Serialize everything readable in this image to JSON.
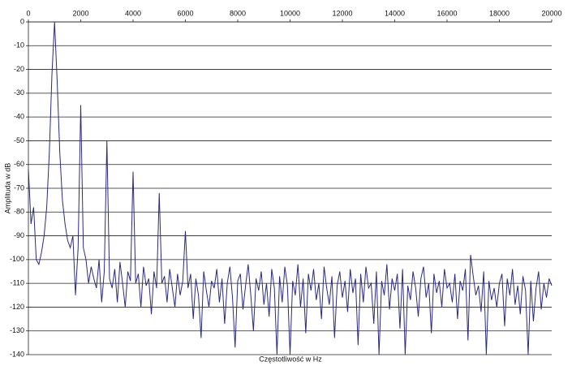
{
  "chart_data": {
    "type": "line",
    "xlabel": "Częstotliwość w Hz",
    "ylabel": "Amplituda w dB",
    "xlim": [
      0,
      20000
    ],
    "ylim": [
      -140,
      0
    ],
    "xticks": [
      0,
      2000,
      4000,
      6000,
      8000,
      10000,
      12000,
      14000,
      16000,
      18000,
      20000
    ],
    "yticks": [
      0,
      -10,
      -20,
      -30,
      -40,
      -50,
      -60,
      -70,
      -80,
      -90,
      -100,
      -110,
      -120,
      -130,
      -140
    ],
    "grid": true,
    "x": [
      0,
      100,
      200,
      300,
      400,
      500,
      600,
      700,
      800,
      900,
      1000,
      1100,
      1200,
      1300,
      1400,
      1500,
      1600,
      1700,
      1800,
      1900,
      2000,
      2100,
      2200,
      2300,
      2400,
      2500,
      2600,
      2700,
      2800,
      2900,
      3000,
      3100,
      3200,
      3300,
      3400,
      3500,
      3600,
      3700,
      3800,
      3900,
      4000,
      4100,
      4200,
      4300,
      4400,
      4500,
      4600,
      4700,
      4800,
      4900,
      5000,
      5100,
      5200,
      5300,
      5400,
      5500,
      5600,
      5700,
      5800,
      5900,
      6000,
      6100,
      6200,
      6300,
      6400,
      6500,
      6600,
      6700,
      6800,
      6900,
      7000,
      7100,
      7200,
      7300,
      7400,
      7500,
      7600,
      7700,
      7800,
      7900,
      8000,
      8100,
      8200,
      8300,
      8400,
      8500,
      8600,
      8700,
      8800,
      8900,
      9000,
      9100,
      9200,
      9300,
      9400,
      9500,
      9600,
      9700,
      9800,
      9900,
      10000,
      10100,
      10200,
      10300,
      10400,
      10500,
      10600,
      10700,
      10800,
      10900,
      11000,
      11100,
      11200,
      11300,
      11400,
      11500,
      11600,
      11700,
      11800,
      11900,
      12000,
      12100,
      12200,
      12300,
      12400,
      12500,
      12600,
      12700,
      12800,
      12900,
      13000,
      13100,
      13200,
      13300,
      13400,
      13500,
      13600,
      13700,
      13800,
      13900,
      14000,
      14100,
      14200,
      14300,
      14400,
      14500,
      14600,
      14700,
      14800,
      14900,
      15000,
      15100,
      15200,
      15300,
      15400,
      15500,
      15600,
      15700,
      15800,
      15900,
      16000,
      16100,
      16200,
      16300,
      16400,
      16500,
      16600,
      16700,
      16800,
      16900,
      17000,
      17100,
      17200,
      17300,
      17400,
      17500,
      17600,
      17700,
      17800,
      17900,
      18000,
      18100,
      18200,
      18300,
      18400,
      18500,
      18600,
      18700,
      18800,
      18900,
      19000,
      19100,
      19200,
      19300,
      19400,
      19500,
      19600,
      19700,
      19800,
      19900,
      20000
    ],
    "series": [
      {
        "color": "#2b2b7e",
        "values": [
          -62,
          -85,
          -78,
          -100,
          -102,
          -97,
          -90,
          -78,
          -55,
          -22,
          0,
          -25,
          -55,
          -75,
          -85,
          -92,
          -95,
          -90,
          -115,
          -95,
          -35,
          -95,
          -100,
          -110,
          -103,
          -108,
          -112,
          -100,
          -118,
          -105,
          -50,
          -108,
          -112,
          -104,
          -118,
          -101,
          -110,
          -120,
          -105,
          -109,
          -63,
          -110,
          -106,
          -120,
          -103,
          -111,
          -108,
          -123,
          -105,
          -112,
          -72,
          -110,
          -107,
          -118,
          -104,
          -112,
          -120,
          -106,
          -115,
          -109,
          -88,
          -112,
          -106,
          -125,
          -108,
          -115,
          -133,
          -105,
          -113,
          -120,
          -109,
          -112,
          -104,
          -118,
          -108,
          -127,
          -110,
          -103,
          -116,
          -137,
          -109,
          -106,
          -121,
          -111,
          -102,
          -115,
          -130,
          -108,
          -113,
          -105,
          -119,
          -110,
          -124,
          -104,
          -112,
          -140,
          -107,
          -118,
          -103,
          -111,
          -140,
          -109,
          -115,
          -102,
          -120,
          -108,
          -131,
          -106,
          -113,
          -104,
          -117,
          -110,
          -125,
          -103,
          -112,
          -119,
          -107,
          -133,
          -111,
          -105,
          -116,
          -109,
          -122,
          -104,
          -114,
          -108,
          -136,
          -106,
          -118,
          -103,
          -112,
          -110,
          -127,
          -105,
          -140,
          -109,
          -115,
          -102,
          -121,
          -108,
          -113,
          -106,
          -129,
          -104,
          -140,
          -111,
          -117,
          -105,
          -112,
          -124,
          -108,
          -103,
          -116,
          -110,
          -131,
          -106,
          -114,
          -109,
          -120,
          -104,
          -112,
          -110,
          -118,
          -106,
          -125,
          -109,
          -113,
          -104,
          -134,
          -98,
          -107,
          -115,
          -111,
          -122,
          -105,
          -140,
          -109,
          -117,
          -112,
          -120,
          -110,
          -106,
          -128,
          -108,
          -115,
          -104,
          -119,
          -111,
          -123,
          -107,
          -113,
          -140,
          -109,
          -126,
          -112,
          -105,
          -121,
          -110,
          -116,
          -108,
          -111
        ]
      }
    ]
  }
}
